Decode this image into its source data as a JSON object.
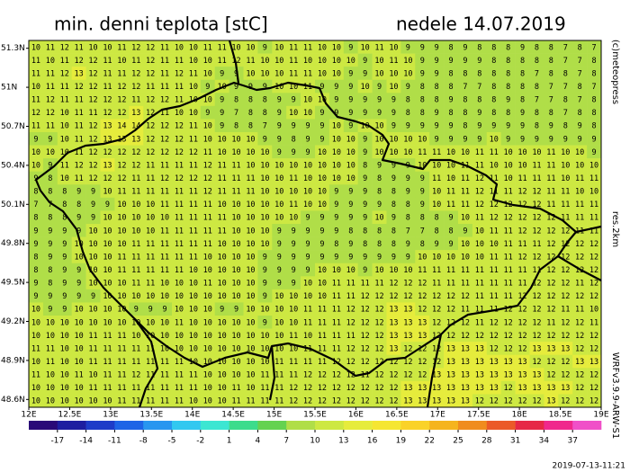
{
  "map": {
    "title": "min. denni teplota [stC]",
    "date": "nedele 14.07.2019",
    "copyright": "(c)meteopress",
    "resolution": "res.2km",
    "model": "WRFv3.9.9-ARW-S1",
    "timestamp": "2019-07-13-11:21",
    "xlim": [
      12,
      19
    ],
    "ylim": [
      48.54,
      51.36
    ],
    "xticks": [
      {
        "value": 12,
        "label": "12E"
      },
      {
        "value": 12.5,
        "label": "12.5E"
      },
      {
        "value": 13,
        "label": "13E"
      },
      {
        "value": 13.5,
        "label": "13.5E"
      },
      {
        "value": 14,
        "label": "14E"
      },
      {
        "value": 14.5,
        "label": "14.5E"
      },
      {
        "value": 15,
        "label": "15E"
      },
      {
        "value": 15.5,
        "label": "15.5E"
      },
      {
        "value": 16,
        "label": "16E"
      },
      {
        "value": 16.5,
        "label": "16.5E"
      },
      {
        "value": 17,
        "label": "17E"
      },
      {
        "value": 17.5,
        "label": "17.5E"
      },
      {
        "value": 18,
        "label": "18E"
      },
      {
        "value": 18.5,
        "label": "18.5E"
      },
      {
        "value": 19,
        "label": "19E"
      }
    ],
    "yticks": [
      {
        "value": 51.3,
        "label": "51.3N"
      },
      {
        "value": 51,
        "label": "51N"
      },
      {
        "value": 50.7,
        "label": "50.7N"
      },
      {
        "value": 50.4,
        "label": "50.4N"
      },
      {
        "value": 50.1,
        "label": "50.1N"
      },
      {
        "value": 49.8,
        "label": "49.8N"
      },
      {
        "value": 49.5,
        "label": "49.5N"
      },
      {
        "value": 49.2,
        "label": "49.2N"
      },
      {
        "value": 48.9,
        "label": "48.9N"
      },
      {
        "value": 48.6,
        "label": "48.6N"
      }
    ],
    "values": [
      [
        10,
        11,
        12,
        11,
        10,
        10,
        11,
        12,
        12,
        11,
        10,
        10,
        11,
        11,
        10,
        10,
        9,
        10,
        11,
        11,
        10,
        10,
        9,
        10,
        11,
        10,
        9,
        9,
        9,
        8,
        9,
        8,
        8,
        8,
        9,
        8,
        8,
        7,
        8,
        7
      ],
      [
        11,
        10,
        11,
        12,
        12,
        11,
        10,
        11,
        12,
        11,
        11,
        10,
        10,
        11,
        12,
        11,
        10,
        10,
        11,
        10,
        10,
        10,
        10,
        9,
        10,
        11,
        10,
        9,
        9,
        9,
        9,
        9,
        8,
        8,
        8,
        8,
        8,
        7,
        7,
        8
      ],
      [
        11,
        11,
        12,
        13,
        12,
        11,
        11,
        12,
        12,
        11,
        12,
        11,
        10,
        9,
        9,
        10,
        10,
        10,
        11,
        11,
        10,
        10,
        9,
        9,
        10,
        10,
        10,
        9,
        9,
        8,
        8,
        8,
        8,
        8,
        8,
        7,
        8,
        8,
        7,
        8
      ],
      [
        10,
        11,
        11,
        12,
        12,
        11,
        12,
        12,
        11,
        11,
        11,
        10,
        9,
        10,
        9,
        9,
        9,
        10,
        10,
        11,
        9,
        9,
        9,
        10,
        9,
        10,
        9,
        8,
        8,
        8,
        7,
        7,
        8,
        8,
        8,
        8,
        7,
        7,
        8,
        7
      ],
      [
        11,
        12,
        11,
        11,
        12,
        12,
        12,
        11,
        12,
        12,
        11,
        10,
        10,
        9,
        8,
        8,
        8,
        9,
        9,
        10,
        10,
        9,
        9,
        9,
        9,
        9,
        8,
        8,
        8,
        9,
        8,
        8,
        8,
        9,
        8,
        7,
        7,
        8,
        7,
        8
      ],
      [
        12,
        12,
        10,
        11,
        11,
        12,
        12,
        13,
        12,
        11,
        10,
        10,
        9,
        9,
        7,
        8,
        8,
        9,
        10,
        10,
        9,
        9,
        9,
        9,
        9,
        9,
        8,
        8,
        9,
        8,
        8,
        9,
        8,
        8,
        9,
        8,
        8,
        7,
        8,
        8
      ],
      [
        11,
        11,
        10,
        11,
        12,
        13,
        14,
        14,
        12,
        12,
        12,
        11,
        10,
        9,
        8,
        8,
        7,
        9,
        9,
        9,
        9,
        10,
        9,
        10,
        10,
        9,
        9,
        9,
        9,
        9,
        8,
        9,
        9,
        9,
        9,
        8,
        9,
        8,
        9,
        8
      ],
      [
        9,
        9,
        10,
        11,
        12,
        13,
        13,
        13,
        12,
        12,
        12,
        11,
        10,
        10,
        10,
        10,
        9,
        9,
        8,
        9,
        9,
        10,
        10,
        9,
        10,
        10,
        10,
        10,
        9,
        9,
        9,
        9,
        10,
        9,
        9,
        9,
        9,
        9,
        9,
        9
      ],
      [
        10,
        10,
        10,
        11,
        12,
        12,
        12,
        12,
        12,
        12,
        12,
        12,
        11,
        10,
        10,
        10,
        10,
        9,
        9,
        9,
        10,
        10,
        10,
        9,
        10,
        10,
        10,
        11,
        11,
        10,
        10,
        11,
        11,
        10,
        10,
        10,
        11,
        10,
        10,
        9
      ],
      [
        10,
        9,
        11,
        12,
        12,
        13,
        12,
        12,
        11,
        11,
        11,
        11,
        12,
        11,
        11,
        10,
        10,
        10,
        10,
        10,
        10,
        10,
        10,
        8,
        9,
        9,
        9,
        10,
        10,
        10,
        11,
        11,
        10,
        10,
        10,
        11,
        11,
        10,
        10,
        10
      ],
      [
        9,
        8,
        10,
        11,
        12,
        12,
        12,
        11,
        11,
        12,
        12,
        12,
        12,
        11,
        11,
        11,
        10,
        10,
        11,
        10,
        10,
        10,
        10,
        9,
        8,
        9,
        9,
        9,
        11,
        10,
        11,
        12,
        11,
        10,
        11,
        11,
        11,
        10,
        11,
        11
      ],
      [
        8,
        8,
        8,
        9,
        9,
        10,
        11,
        11,
        11,
        11,
        11,
        11,
        12,
        11,
        11,
        11,
        10,
        10,
        10,
        10,
        10,
        9,
        9,
        9,
        8,
        8,
        9,
        9,
        10,
        11,
        11,
        12,
        11,
        11,
        12,
        12,
        11,
        11,
        10,
        10
      ],
      [
        7,
        7,
        8,
        8,
        9,
        9,
        10,
        10,
        10,
        11,
        11,
        11,
        11,
        10,
        10,
        10,
        10,
        10,
        11,
        10,
        10,
        9,
        9,
        9,
        9,
        8,
        8,
        9,
        10,
        11,
        11,
        12,
        12,
        12,
        12,
        12,
        11,
        11,
        11,
        11
      ],
      [
        8,
        8,
        8,
        9,
        9,
        10,
        10,
        10,
        10,
        10,
        11,
        11,
        11,
        11,
        10,
        10,
        10,
        10,
        10,
        9,
        9,
        9,
        9,
        9,
        10,
        9,
        8,
        8,
        8,
        9,
        10,
        11,
        12,
        12,
        12,
        12,
        12,
        11,
        11,
        11
      ],
      [
        9,
        9,
        9,
        9,
        10,
        10,
        10,
        10,
        10,
        11,
        11,
        11,
        11,
        11,
        10,
        10,
        10,
        9,
        9,
        9,
        9,
        9,
        8,
        8,
        8,
        8,
        7,
        7,
        8,
        8,
        9,
        10,
        11,
        11,
        12,
        12,
        12,
        12,
        11,
        11
      ],
      [
        9,
        9,
        9,
        10,
        10,
        10,
        10,
        11,
        11,
        11,
        11,
        11,
        11,
        10,
        10,
        10,
        10,
        9,
        9,
        9,
        9,
        8,
        9,
        8,
        8,
        8,
        9,
        8,
        9,
        9,
        10,
        10,
        10,
        11,
        11,
        11,
        12,
        12,
        12,
        12
      ],
      [
        8,
        9,
        9,
        10,
        10,
        10,
        11,
        11,
        11,
        11,
        11,
        11,
        10,
        10,
        10,
        10,
        9,
        9,
        9,
        9,
        9,
        9,
        9,
        9,
        9,
        9,
        9,
        10,
        10,
        10,
        10,
        10,
        11,
        11,
        12,
        12,
        12,
        12,
        12,
        12
      ],
      [
        8,
        8,
        9,
        9,
        10,
        10,
        11,
        11,
        11,
        11,
        11,
        10,
        10,
        10,
        10,
        10,
        9,
        9,
        9,
        9,
        10,
        10,
        10,
        9,
        10,
        10,
        10,
        11,
        11,
        11,
        11,
        11,
        11,
        11,
        11,
        11,
        12,
        12,
        12,
        12
      ],
      [
        9,
        8,
        9,
        9,
        10,
        10,
        10,
        11,
        11,
        10,
        10,
        10,
        11,
        10,
        10,
        10,
        9,
        9,
        9,
        10,
        10,
        11,
        11,
        11,
        11,
        12,
        12,
        12,
        11,
        11,
        11,
        11,
        11,
        11,
        11,
        12,
        12,
        12,
        11,
        12
      ],
      [
        9,
        9,
        9,
        9,
        9,
        10,
        10,
        10,
        10,
        10,
        10,
        10,
        10,
        10,
        10,
        10,
        9,
        10,
        10,
        10,
        10,
        11,
        11,
        12,
        12,
        12,
        12,
        12,
        12,
        12,
        12,
        11,
        11,
        11,
        12,
        12,
        12,
        12,
        12,
        12
      ],
      [
        10,
        9,
        9,
        10,
        10,
        10,
        10,
        9,
        9,
        9,
        10,
        10,
        10,
        9,
        9,
        10,
        10,
        10,
        10,
        11,
        11,
        11,
        12,
        12,
        12,
        13,
        13,
        12,
        12,
        12,
        11,
        11,
        11,
        12,
        12,
        12,
        12,
        11,
        11,
        10
      ],
      [
        10,
        10,
        10,
        10,
        10,
        10,
        10,
        10,
        10,
        10,
        11,
        10,
        10,
        10,
        10,
        10,
        9,
        10,
        10,
        11,
        11,
        11,
        12,
        12,
        12,
        13,
        13,
        13,
        12,
        12,
        12,
        11,
        12,
        12,
        12,
        12,
        11,
        12,
        12,
        11
      ],
      [
        10,
        10,
        10,
        10,
        11,
        11,
        11,
        10,
        10,
        10,
        10,
        10,
        10,
        10,
        10,
        10,
        10,
        10,
        11,
        10,
        11,
        11,
        11,
        12,
        12,
        13,
        13,
        13,
        12,
        12,
        12,
        12,
        12,
        12,
        12,
        12,
        12,
        12,
        12,
        12
      ],
      [
        11,
        11,
        10,
        10,
        11,
        11,
        11,
        11,
        11,
        10,
        10,
        10,
        10,
        10,
        10,
        10,
        10,
        10,
        10,
        11,
        11,
        11,
        12,
        12,
        12,
        13,
        12,
        12,
        12,
        13,
        13,
        13,
        12,
        12,
        12,
        13,
        13,
        13,
        12,
        12
      ],
      [
        10,
        11,
        10,
        10,
        11,
        11,
        11,
        11,
        11,
        11,
        11,
        10,
        10,
        10,
        10,
        10,
        10,
        11,
        11,
        11,
        11,
        12,
        12,
        12,
        12,
        12,
        12,
        12,
        12,
        13,
        13,
        13,
        13,
        13,
        13,
        12,
        12,
        12,
        13,
        13
      ],
      [
        11,
        10,
        10,
        11,
        10,
        11,
        11,
        12,
        11,
        11,
        11,
        11,
        10,
        10,
        10,
        10,
        11,
        11,
        11,
        12,
        12,
        12,
        12,
        11,
        12,
        12,
        12,
        12,
        13,
        13,
        13,
        13,
        13,
        13,
        13,
        13,
        12,
        12,
        12,
        12
      ],
      [
        10,
        10,
        10,
        10,
        11,
        11,
        11,
        11,
        11,
        11,
        11,
        11,
        10,
        10,
        11,
        10,
        11,
        11,
        12,
        12,
        12,
        12,
        12,
        12,
        12,
        12,
        13,
        13,
        13,
        13,
        13,
        13,
        13,
        12,
        13,
        13,
        13,
        13,
        12,
        12
      ],
      [
        10,
        10,
        10,
        10,
        10,
        10,
        11,
        11,
        11,
        11,
        11,
        10,
        10,
        10,
        11,
        11,
        11,
        11,
        12,
        12,
        12,
        12,
        12,
        12,
        12,
        12,
        13,
        13,
        13,
        13,
        13,
        12,
        12,
        12,
        12,
        12,
        13,
        12,
        12,
        12
      ]
    ],
    "colorbar": {
      "lim": [
        -20,
        40
      ],
      "ticks": [
        -17,
        -14,
        -11,
        -8,
        -5,
        -2,
        1,
        4,
        7,
        10,
        13,
        16,
        19,
        22,
        25,
        28,
        31,
        34,
        37
      ],
      "colors": [
        "#2a0a78",
        "#1e1ea0",
        "#1e3cc8",
        "#1e64e6",
        "#2896f0",
        "#32c8f0",
        "#3ce6d2",
        "#3cdc8c",
        "#64d250",
        "#b0de48",
        "#cde842",
        "#e6ec3c",
        "#f5e632",
        "#fad228",
        "#f5b41e",
        "#f08c1e",
        "#eb5a28",
        "#e62846",
        "#f0288c",
        "#f050c8"
      ]
    }
  }
}
